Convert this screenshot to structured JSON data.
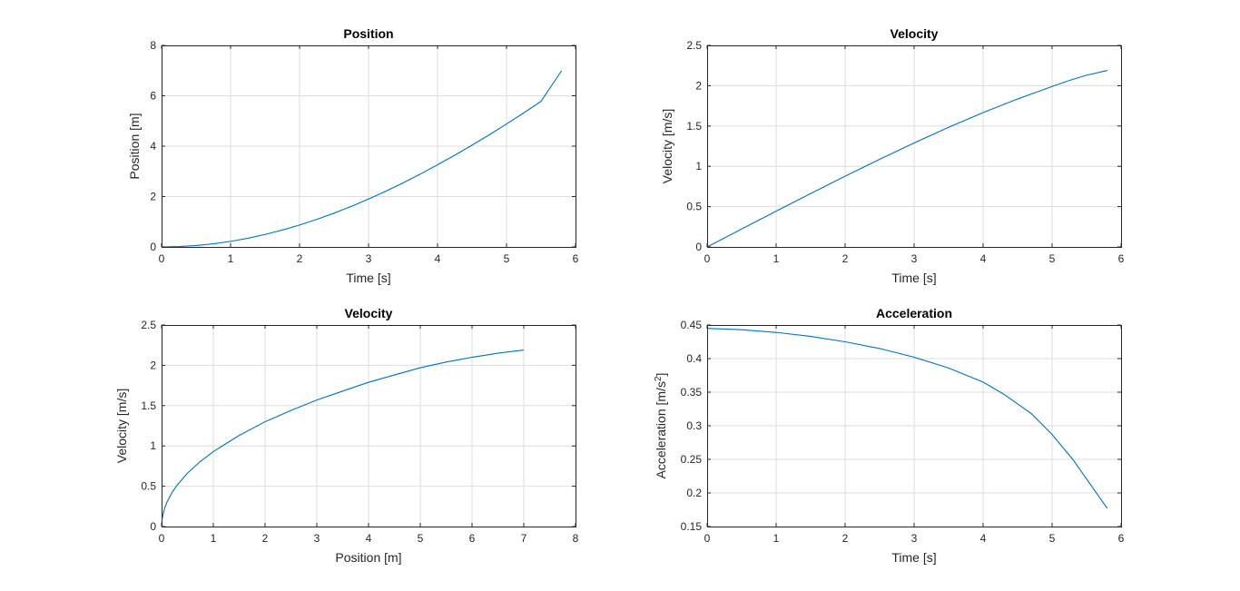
{
  "chart_data": [
    {
      "type": "line",
      "title": "Position",
      "xlabel": "Time [s]",
      "ylabel": "Position [m]",
      "xlim": [
        0,
        6
      ],
      "ylim": [
        0,
        8
      ],
      "xticks": [
        0,
        1,
        2,
        3,
        4,
        5,
        6
      ],
      "yticks": [
        0,
        2,
        4,
        6,
        8
      ],
      "grid": true,
      "color": "#0072BD",
      "series": [
        {
          "x": [
            0,
            0.25,
            0.5,
            0.75,
            1.0,
            1.25,
            1.5,
            1.75,
            2.0,
            2.25,
            2.5,
            2.75,
            3.0,
            3.25,
            3.5,
            3.75,
            4.0,
            4.25,
            4.5,
            4.75,
            5.0,
            5.25,
            5.5,
            5.8
          ],
          "y": [
            0,
            0.014,
            0.056,
            0.125,
            0.22,
            0.345,
            0.495,
            0.67,
            0.87,
            1.095,
            1.34,
            1.61,
            1.9,
            2.21,
            2.54,
            2.89,
            3.26,
            3.64,
            4.04,
            4.45,
            4.88,
            5.32,
            5.78,
            7.0
          ]
        }
      ]
    },
    {
      "type": "line",
      "title": "Velocity",
      "xlabel": "Time [s]",
      "ylabel": "Velocity [m/s]",
      "xlim": [
        0,
        6
      ],
      "ylim": [
        0,
        2.5
      ],
      "xticks": [
        0,
        1,
        2,
        3,
        4,
        5,
        6
      ],
      "yticks": [
        0,
        0.5,
        1,
        1.5,
        2,
        2.5
      ],
      "grid": true,
      "color": "#0072BD",
      "series": [
        {
          "x": [
            0,
            0.5,
            1.0,
            1.5,
            2.0,
            2.5,
            3.0,
            3.5,
            4.0,
            4.5,
            5.0,
            5.25,
            5.5,
            5.8
          ],
          "y": [
            0,
            0.222,
            0.443,
            0.662,
            0.877,
            1.087,
            1.29,
            1.484,
            1.667,
            1.835,
            1.99,
            2.065,
            2.13,
            2.19
          ]
        }
      ]
    },
    {
      "type": "line",
      "title": "Velocity",
      "xlabel": "Position [m]",
      "ylabel": "Velocity [m/s]",
      "xlim": [
        0,
        8
      ],
      "ylim": [
        0,
        2.5
      ],
      "xticks": [
        0,
        1,
        2,
        3,
        4,
        5,
        6,
        7,
        8
      ],
      "yticks": [
        0,
        0.5,
        1,
        1.5,
        2,
        2.5
      ],
      "grid": true,
      "color": "#0072BD",
      "series": [
        {
          "x": [
            0,
            0.01,
            0.05,
            0.1,
            0.2,
            0.3,
            0.5,
            0.75,
            1.0,
            1.5,
            2.0,
            2.5,
            3.0,
            3.5,
            4.0,
            4.5,
            5.0,
            5.5,
            6.0,
            6.5,
            7.0
          ],
          "y": [
            0,
            0.094,
            0.21,
            0.297,
            0.42,
            0.514,
            0.662,
            0.808,
            0.93,
            1.13,
            1.3,
            1.44,
            1.57,
            1.68,
            1.79,
            1.88,
            1.97,
            2.04,
            2.1,
            2.15,
            2.19
          ]
        }
      ]
    },
    {
      "type": "line",
      "title": "Acceleration",
      "xlabel": "Time [s]",
      "ylabel": "Acceleration [m/s",
      "ylabel_sup": "2",
      "ylabel_end": "]",
      "xlim": [
        0,
        6
      ],
      "ylim": [
        0.15,
        0.45
      ],
      "xticks": [
        0,
        1,
        2,
        3,
        4,
        5,
        6
      ],
      "yticks": [
        0.15,
        0.2,
        0.25,
        0.3,
        0.35,
        0.4,
        0.45
      ],
      "grid": true,
      "color": "#0072BD",
      "series": [
        {
          "x": [
            0,
            0.5,
            1.0,
            1.5,
            2.0,
            2.5,
            3.0,
            3.5,
            4.0,
            4.3,
            4.7,
            5.0,
            5.3,
            5.8
          ],
          "y": [
            0.445,
            0.443,
            0.439,
            0.433,
            0.425,
            0.415,
            0.402,
            0.386,
            0.365,
            0.347,
            0.318,
            0.287,
            0.25,
            0.177
          ]
        }
      ]
    }
  ]
}
